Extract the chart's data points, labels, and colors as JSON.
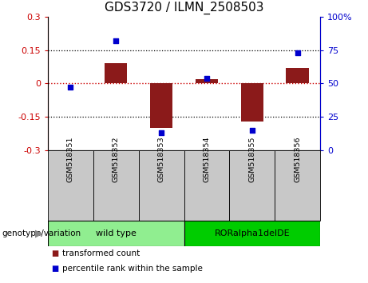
{
  "title": "GDS3720 / ILMN_2508503",
  "samples": [
    "GSM518351",
    "GSM518352",
    "GSM518353",
    "GSM518354",
    "GSM518355",
    "GSM518356"
  ],
  "transformed_count": [
    0.0,
    0.09,
    -0.2,
    0.02,
    -0.17,
    0.07
  ],
  "percentile_rank": [
    47,
    82,
    13,
    54,
    15,
    73
  ],
  "bar_color": "#8B1A1A",
  "dot_color": "#0000CD",
  "ylim_left": [
    -0.3,
    0.3
  ],
  "ylim_right": [
    0,
    100
  ],
  "yticks_left": [
    -0.3,
    -0.15,
    0,
    0.15,
    0.3
  ],
  "yticks_right": [
    0,
    25,
    50,
    75,
    100
  ],
  "ytick_labels_left": [
    "-0.3",
    "-0.15",
    "0",
    "0.15",
    "0.3"
  ],
  "ytick_labels_right": [
    "0",
    "25",
    "50",
    "75",
    "100%"
  ],
  "hlines": [
    0.15,
    -0.15
  ],
  "hline_zero_color": "#CC0000",
  "hline_dotted_color": "black",
  "groups": [
    {
      "label": "wild type",
      "samples": [
        0,
        1,
        2
      ],
      "color": "#90EE90"
    },
    {
      "label": "RORalpha1delDE",
      "samples": [
        3,
        4,
        5
      ],
      "color": "#00CC00"
    }
  ],
  "group_label": "genotype/variation",
  "legend_items": [
    {
      "label": "transformed count",
      "color": "#8B1A1A"
    },
    {
      "label": "percentile rank within the sample",
      "color": "#0000CD"
    }
  ],
  "bar_width": 0.5,
  "title_fontsize": 11,
  "tick_fontsize": 8,
  "label_fontsize": 8,
  "samplebox_color": "#C8C8C8"
}
